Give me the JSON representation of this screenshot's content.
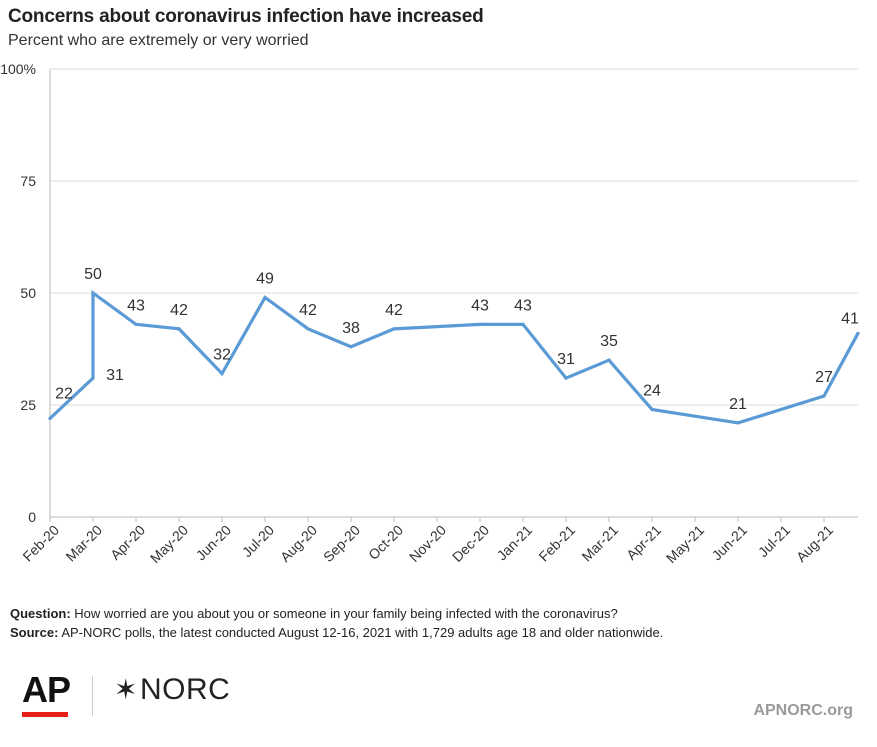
{
  "title": "Concerns about coronavirus infection have increased",
  "subtitle": "Percent who are extremely or very worried",
  "notes": {
    "question_label": "Question:",
    "question_text": "How worried are you about you or someone in your family being infected with the coronavirus?",
    "source_label": "Source:",
    "source_text": "AP-NORC polls, the latest conducted August 12-16, 2021 with 1,729 adults age 18 and older nationwide."
  },
  "logos": {
    "ap": "AP",
    "norc_star": "✶",
    "norc": "NORC",
    "site": "APNORC.org"
  },
  "colors": {
    "line": "#5b9bd5",
    "grid": "#dddddd",
    "ap_red": "#e8201a"
  },
  "chart_data": {
    "type": "line",
    "title": "Concerns about coronavirus infection have increased",
    "subtitle": "Percent who are extremely or very worried",
    "x_ticks": [
      "Feb-20",
      "Mar-20",
      "Apr-20",
      "May-20",
      "Jun-20",
      "Jul-20",
      "Aug-20",
      "Sep-20",
      "Oct-20",
      "Nov-20",
      "Dec-20",
      "Jan-21",
      "Feb-21",
      "Mar-21",
      "Apr-21",
      "May-21",
      "Jun-21",
      "Jul-21",
      "Aug-21"
    ],
    "y_ticks": [
      "100%",
      "75",
      "50",
      "25",
      "0"
    ],
    "ylim": [
      0,
      100
    ],
    "grid": true,
    "series": [
      {
        "points": [
          {
            "x": "Feb-20",
            "y": 22
          },
          {
            "x": "Mar-20",
            "y": 31
          },
          {
            "x": "Mar-20",
            "y": 50
          },
          {
            "x": "Apr-20",
            "y": 43
          },
          {
            "x": "May-20",
            "y": 42
          },
          {
            "x": "Jun-20",
            "y": 32
          },
          {
            "x": "Jul-20",
            "y": 49
          },
          {
            "x": "Aug-20",
            "y": 42
          },
          {
            "x": "Sep-20",
            "y": 38
          },
          {
            "x": "Oct-20",
            "y": 42
          },
          {
            "x": "Dec-20",
            "y": 43
          },
          {
            "x": "Jan-21",
            "y": 43
          },
          {
            "x": "Feb-21",
            "y": 31
          },
          {
            "x": "Mar-21",
            "y": 35
          },
          {
            "x": "Apr-21",
            "y": 24
          },
          {
            "x": "Jun-21",
            "y": 21
          },
          {
            "x": "Aug-21",
            "y": 27
          },
          {
            "x": "Aug-21 (end)",
            "y": 41
          }
        ]
      }
    ]
  }
}
